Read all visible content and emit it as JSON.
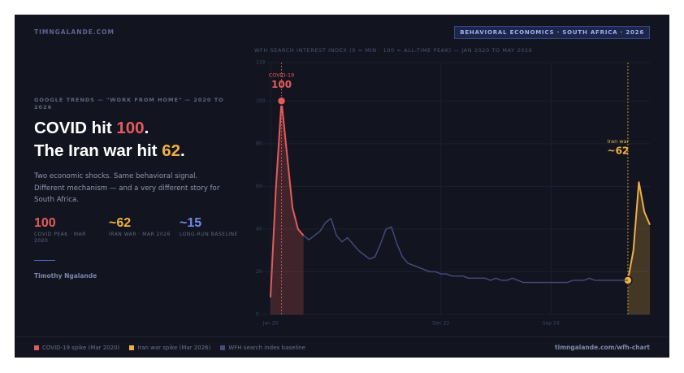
{
  "brand": "TIMNGALANDE.COM",
  "badge": "BEHAVIORAL ECONOMICS · SOUTH AFRICA · 2026",
  "kicker": "GOOGLE TRENDS — \"WORK FROM HOME\" — 2020 TO 2026",
  "headline": [
    {
      "lead": "COVID hit",
      "figure": "100",
      "end": "."
    },
    {
      "lead": "The Iran war hit",
      "figure": "62",
      "end": "."
    }
  ],
  "summary": "Two economic shocks. Same behavioral signal. Different mechanism — and a very different story for South Africa.",
  "stats": [
    {
      "value": "100",
      "label": "COVID PEAK · MAR 2020"
    },
    {
      "value": "~62",
      "label": "IRAN WAR · MAR 2026"
    },
    {
      "value": "~15",
      "label": "LONG-RUN BASELINE"
    }
  ],
  "author": "Timothy Ngalande",
  "source_url": "timngalande.com/wfh-chart",
  "chart_data": {
    "type": "line",
    "title": "WFH SEARCH INTEREST INDEX (0 = MIN · 100 = ALL-TIME PEAK) — JAN 2020 TO MAY 2026",
    "categories": [
      "Jan 20",
      null,
      null,
      null,
      null,
      null,
      null,
      null,
      null,
      null,
      null,
      null,
      null,
      null,
      null,
      null,
      null,
      null,
      null,
      null,
      null,
      null,
      null,
      null,
      null,
      null,
      null,
      null,
      null,
      null,
      null,
      "Dec 22",
      null,
      null,
      null,
      null,
      null,
      null,
      null,
      null,
      null,
      null,
      null,
      null,
      null,
      null,
      null,
      null,
      null,
      null,
      null,
      "Sep 24",
      null,
      null,
      null,
      null,
      null,
      null,
      null,
      null,
      null,
      null,
      null,
      null,
      null,
      null,
      null,
      null,
      null,
      null
    ],
    "series": [
      {
        "name": "COVID-19 spike (Mar 2020)",
        "color": "#e45b5b",
        "values": [
          8,
          60,
          100,
          75,
          50,
          40,
          37,
          null,
          null,
          null,
          null,
          null,
          null,
          null,
          null,
          null,
          null,
          null,
          null,
          null,
          null,
          null,
          null,
          null,
          null,
          null,
          null,
          null,
          null,
          null,
          null,
          null,
          null,
          null,
          null,
          null,
          null,
          null,
          null,
          null,
          null,
          null,
          null,
          null,
          null,
          null,
          null,
          null,
          null,
          null,
          null,
          null,
          null,
          null,
          null,
          null,
          null,
          null,
          null,
          null,
          null,
          null,
          null,
          null,
          null,
          null,
          null,
          null,
          null,
          null
        ]
      },
      {
        "name": "Iran war spike (Mar 2026)",
        "color": "#f0b040",
        "values": [
          null,
          null,
          null,
          null,
          null,
          null,
          null,
          null,
          null,
          null,
          null,
          null,
          null,
          null,
          null,
          null,
          null,
          null,
          null,
          null,
          null,
          null,
          null,
          null,
          null,
          null,
          null,
          null,
          null,
          null,
          null,
          null,
          null,
          null,
          null,
          null,
          null,
          null,
          null,
          null,
          null,
          null,
          null,
          null,
          null,
          null,
          null,
          null,
          null,
          null,
          null,
          null,
          null,
          null,
          null,
          null,
          null,
          null,
          null,
          null,
          null,
          null,
          null,
          null,
          null,
          16,
          30,
          62,
          48,
          42
        ]
      },
      {
        "name": "WFH search index baseline",
        "color": "#464c7e",
        "values": [
          null,
          null,
          null,
          null,
          null,
          null,
          37,
          35,
          37,
          39,
          43,
          45,
          37,
          34,
          36,
          33,
          30,
          28,
          26,
          27,
          33,
          40,
          41,
          33,
          27,
          24,
          23,
          22,
          21,
          20,
          20,
          19,
          19,
          18,
          18,
          18,
          17,
          17,
          17,
          17,
          16,
          17,
          16,
          16,
          17,
          16,
          15,
          15,
          15,
          15,
          15,
          15,
          15,
          15,
          15,
          16,
          16,
          16,
          17,
          16,
          16,
          16,
          16,
          16,
          16,
          16,
          null,
          null,
          null,
          null
        ]
      }
    ],
    "annotations": [
      {
        "title": "COVID-19",
        "label": "100"
      },
      {
        "title": "Iran war",
        "label": "~62"
      }
    ],
    "ylim": [
      0,
      118
    ],
    "yticks": [
      0,
      20,
      40,
      60,
      80,
      100,
      118
    ],
    "grid": true
  }
}
